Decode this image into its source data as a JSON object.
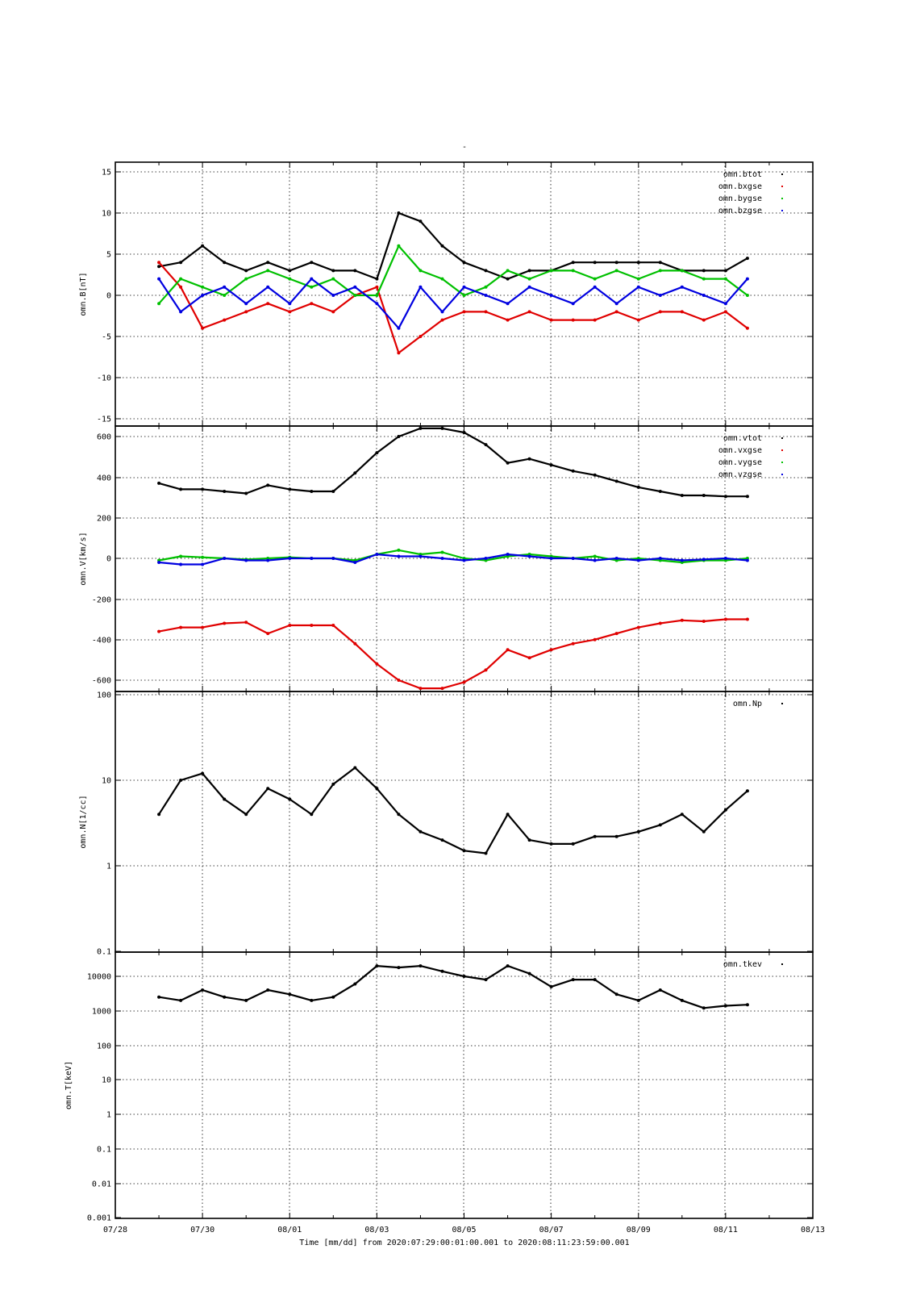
{
  "figure": {
    "title": "-",
    "xaxis_label": "Time [mm/dd]  from 2020:07:29:00:01:00.001  to  2020:08:11:23:59:00.001",
    "x_ticks": [
      "07/28",
      "07/30",
      "08/01",
      "08/03",
      "08/05",
      "08/07",
      "08/09",
      "08/11",
      "08/13"
    ]
  },
  "chart_data": [
    {
      "type": "scatter",
      "ylabel": "omn.B[nT]",
      "ylim": [
        -15,
        15
      ],
      "yscale": "linear",
      "y_ticks": [
        "15",
        "10",
        "5",
        "0",
        "-5",
        "-10",
        "-15"
      ],
      "legend_position": "top-right",
      "series": [
        {
          "name": "omn.btot",
          "color": "#000000",
          "x": [
            1.0,
            1.5,
            2.0,
            2.5,
            3.0,
            3.5,
            4.0,
            4.5,
            5.0,
            5.5,
            6.0,
            6.5,
            7.0,
            7.5,
            8.0,
            8.5,
            9.0,
            9.5,
            10.0,
            10.5,
            11.0,
            11.5,
            12.0,
            12.5,
            13.0,
            13.5,
            14.0,
            14.5
          ],
          "y": [
            3.5,
            4,
            6,
            4,
            3,
            4,
            3,
            4,
            3,
            3,
            2,
            10,
            9,
            6,
            4,
            3,
            2,
            3,
            3,
            4,
            4,
            4,
            4,
            4,
            3,
            3,
            3,
            4.5
          ]
        },
        {
          "name": "omn.bxgse",
          "color": "#e00000",
          "x": [
            1.0,
            1.5,
            2.0,
            2.5,
            3.0,
            3.5,
            4.0,
            4.5,
            5.0,
            5.5,
            6.0,
            6.5,
            7.0,
            7.5,
            8.0,
            8.5,
            9.0,
            9.5,
            10.0,
            10.5,
            11.0,
            11.5,
            12.0,
            12.5,
            13.0,
            13.5,
            14.0,
            14.5
          ],
          "y": [
            4,
            1,
            -4,
            -3,
            -2,
            -1,
            -2,
            -1,
            -2,
            0,
            1,
            -7,
            -5,
            -3,
            -2,
            -2,
            -3,
            -2,
            -3,
            -3,
            -3,
            -2,
            -3,
            -2,
            -2,
            -3,
            -2,
            -4
          ]
        },
        {
          "name": "omn.bygse",
          "color": "#00c000",
          "x": [
            1.0,
            1.5,
            2.0,
            2.5,
            3.0,
            3.5,
            4.0,
            4.5,
            5.0,
            5.5,
            6.0,
            6.5,
            7.0,
            7.5,
            8.0,
            8.5,
            9.0,
            9.5,
            10.0,
            10.5,
            11.0,
            11.5,
            12.0,
            12.5,
            13.0,
            13.5,
            14.0,
            14.5
          ],
          "y": [
            -1,
            2,
            1,
            0,
            2,
            3,
            2,
            1,
            2,
            0,
            0,
            6,
            3,
            2,
            0,
            1,
            3,
            2,
            3,
            3,
            2,
            3,
            2,
            3,
            3,
            2,
            2,
            0
          ]
        },
        {
          "name": "omn.bzgse",
          "color": "#0000e0",
          "x": [
            1.0,
            1.5,
            2.0,
            2.5,
            3.0,
            3.5,
            4.0,
            4.5,
            5.0,
            5.5,
            6.0,
            6.5,
            7.0,
            7.5,
            8.0,
            8.5,
            9.0,
            9.5,
            10.0,
            10.5,
            11.0,
            11.5,
            12.0,
            12.5,
            13.0,
            13.5,
            14.0,
            14.5
          ],
          "y": [
            2,
            -2,
            0,
            1,
            -1,
            1,
            -1,
            2,
            0,
            1,
            -1,
            -4,
            1,
            -2,
            1,
            0,
            -1,
            1,
            0,
            -1,
            1,
            -1,
            1,
            0,
            1,
            0,
            -1,
            2
          ]
        }
      ]
    },
    {
      "type": "scatter",
      "ylabel": "omn.V[km/s]",
      "ylim": [
        -630,
        630
      ],
      "yscale": "linear",
      "y_ticks": [
        "600",
        "400",
        "200",
        "0",
        "-200",
        "-400",
        "-600"
      ],
      "legend_position": "top-right",
      "series": [
        {
          "name": "omn.vtot",
          "color": "#000000",
          "x": [
            1.0,
            1.5,
            2.0,
            2.5,
            3.0,
            3.5,
            4.0,
            4.5,
            5.0,
            5.5,
            6.0,
            6.5,
            7.0,
            7.5,
            8.0,
            8.5,
            9.0,
            9.5,
            10.0,
            10.5,
            11.0,
            11.5,
            12.0,
            12.5,
            13.0,
            13.5,
            14.0,
            14.5
          ],
          "y": [
            370,
            340,
            340,
            330,
            320,
            360,
            340,
            330,
            330,
            420,
            520,
            600,
            640,
            640,
            620,
            560,
            470,
            490,
            460,
            430,
            410,
            380,
            350,
            330,
            310,
            310,
            305,
            305
          ]
        },
        {
          "name": "omn.vxgse",
          "color": "#e00000",
          "x": [
            1.0,
            1.5,
            2.0,
            2.5,
            3.0,
            3.5,
            4.0,
            4.5,
            5.0,
            5.5,
            6.0,
            6.5,
            7.0,
            7.5,
            8.0,
            8.5,
            9.0,
            9.5,
            10.0,
            10.5,
            11.0,
            11.5,
            12.0,
            12.5,
            13.0,
            13.5,
            14.0,
            14.5
          ],
          "y": [
            -360,
            -340,
            -340,
            -320,
            -315,
            -370,
            -330,
            -330,
            -330,
            -420,
            -520,
            -600,
            -640,
            -640,
            -610,
            -550,
            -450,
            -490,
            -450,
            -420,
            -400,
            -370,
            -340,
            -320,
            -305,
            -310,
            -300,
            -300
          ]
        },
        {
          "name": "omn.vygse",
          "color": "#00c000",
          "x": [
            1.0,
            1.5,
            2.0,
            2.5,
            3.0,
            3.5,
            4.0,
            4.5,
            5.0,
            5.5,
            6.0,
            6.5,
            7.0,
            7.5,
            8.0,
            8.5,
            9.0,
            9.5,
            10.0,
            10.5,
            11.0,
            11.5,
            12.0,
            12.5,
            13.0,
            13.5,
            14.0,
            14.5
          ],
          "y": [
            -10,
            10,
            5,
            0,
            -5,
            0,
            5,
            0,
            0,
            -10,
            20,
            40,
            20,
            30,
            0,
            -10,
            10,
            20,
            10,
            0,
            10,
            -10,
            0,
            -10,
            -20,
            -10,
            -10,
            0
          ]
        },
        {
          "name": "omn.vzgse",
          "color": "#0000e0",
          "x": [
            1.0,
            1.5,
            2.0,
            2.5,
            3.0,
            3.5,
            4.0,
            4.5,
            5.0,
            5.5,
            6.0,
            6.5,
            7.0,
            7.5,
            8.0,
            8.5,
            9.0,
            9.5,
            10.0,
            10.5,
            11.0,
            11.5,
            12.0,
            12.5,
            13.0,
            13.5,
            14.0,
            14.5
          ],
          "y": [
            -20,
            -30,
            -30,
            0,
            -10,
            -10,
            0,
            0,
            0,
            -20,
            20,
            10,
            10,
            0,
            -10,
            0,
            20,
            10,
            0,
            0,
            -10,
            0,
            -10,
            0,
            -10,
            -5,
            0,
            -10
          ]
        }
      ]
    },
    {
      "type": "scatter",
      "ylabel": "omn.N[1/cc]",
      "ylim": [
        0.1,
        100
      ],
      "yscale": "log",
      "y_ticks": [
        "100",
        "10",
        "1",
        "0.1"
      ],
      "legend_position": "top-right",
      "series": [
        {
          "name": "omn.Np",
          "color": "#000000",
          "x": [
            1.0,
            1.5,
            2.0,
            2.5,
            3.0,
            3.5,
            4.0,
            4.5,
            5.0,
            5.5,
            6.0,
            6.5,
            7.0,
            7.5,
            8.0,
            8.5,
            9.0,
            9.5,
            10.0,
            10.5,
            11.0,
            11.5,
            12.0,
            12.5,
            13.0,
            13.5,
            14.0,
            14.5
          ],
          "y": [
            4,
            10,
            12,
            6,
            4,
            8,
            6,
            4,
            9,
            14,
            8,
            4,
            2.5,
            2,
            1.5,
            1.4,
            4,
            2,
            1.8,
            1.8,
            2.2,
            2.2,
            2.5,
            3,
            4,
            2.5,
            4.5,
            7.5
          ]
        }
      ]
    },
    {
      "type": "scatter",
      "ylabel": "omn.T[keV]",
      "ylim": [
        0.001,
        30000
      ],
      "yscale": "log",
      "y_ticks": [
        "10000",
        "1000",
        "100",
        "10",
        "1",
        "0.1",
        "0.01",
        "0.001"
      ],
      "legend_position": "top-right",
      "series": [
        {
          "name": "omn.tkev",
          "color": "#000000",
          "x": [
            1.0,
            1.5,
            2.0,
            2.5,
            3.0,
            3.5,
            4.0,
            4.5,
            5.0,
            5.5,
            6.0,
            6.5,
            7.0,
            7.5,
            8.0,
            8.5,
            9.0,
            9.5,
            10.0,
            10.5,
            11.0,
            11.5,
            12.0,
            12.5,
            13.0,
            13.5,
            14.0,
            14.5
          ],
          "y": [
            2500,
            2000,
            4000,
            2500,
            2000,
            4000,
            3000,
            2000,
            2500,
            6000,
            20000,
            18000,
            20000,
            14000,
            10000,
            8000,
            20000,
            12000,
            5000,
            8000,
            8000,
            3000,
            2000,
            4000,
            2000,
            1200,
            1400,
            1500
          ]
        }
      ]
    }
  ]
}
